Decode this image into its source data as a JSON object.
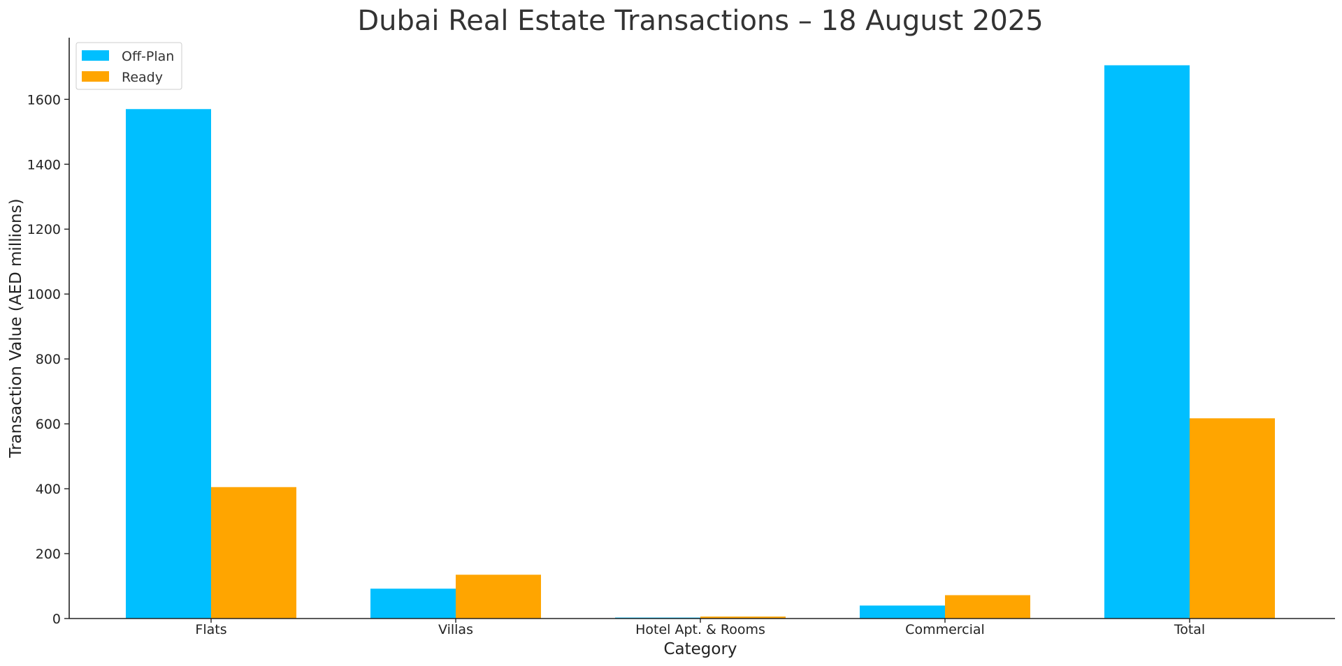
{
  "chart_data": {
    "type": "bar",
    "title": "Dubai Real Estate Transactions – 18 August 2025",
    "xlabel": "Category",
    "ylabel": "Transaction Value (AED millions)",
    "categories": [
      "Flats",
      "Villas",
      "Hotel Apt. & Rooms",
      "Commercial",
      "Total"
    ],
    "series": [
      {
        "name": "Off-Plan",
        "color": "#00BFFF",
        "values": [
          1570,
          92,
          3,
          40,
          1705
        ]
      },
      {
        "name": "Ready",
        "color": "#FFA500",
        "values": [
          405,
          135,
          6,
          72,
          617
        ]
      }
    ],
    "ylim": [
      0,
      1790
    ],
    "yticks": [
      0,
      200,
      400,
      600,
      800,
      1000,
      1200,
      1400,
      1600
    ],
    "grid": false,
    "legend_position": "top-left"
  }
}
